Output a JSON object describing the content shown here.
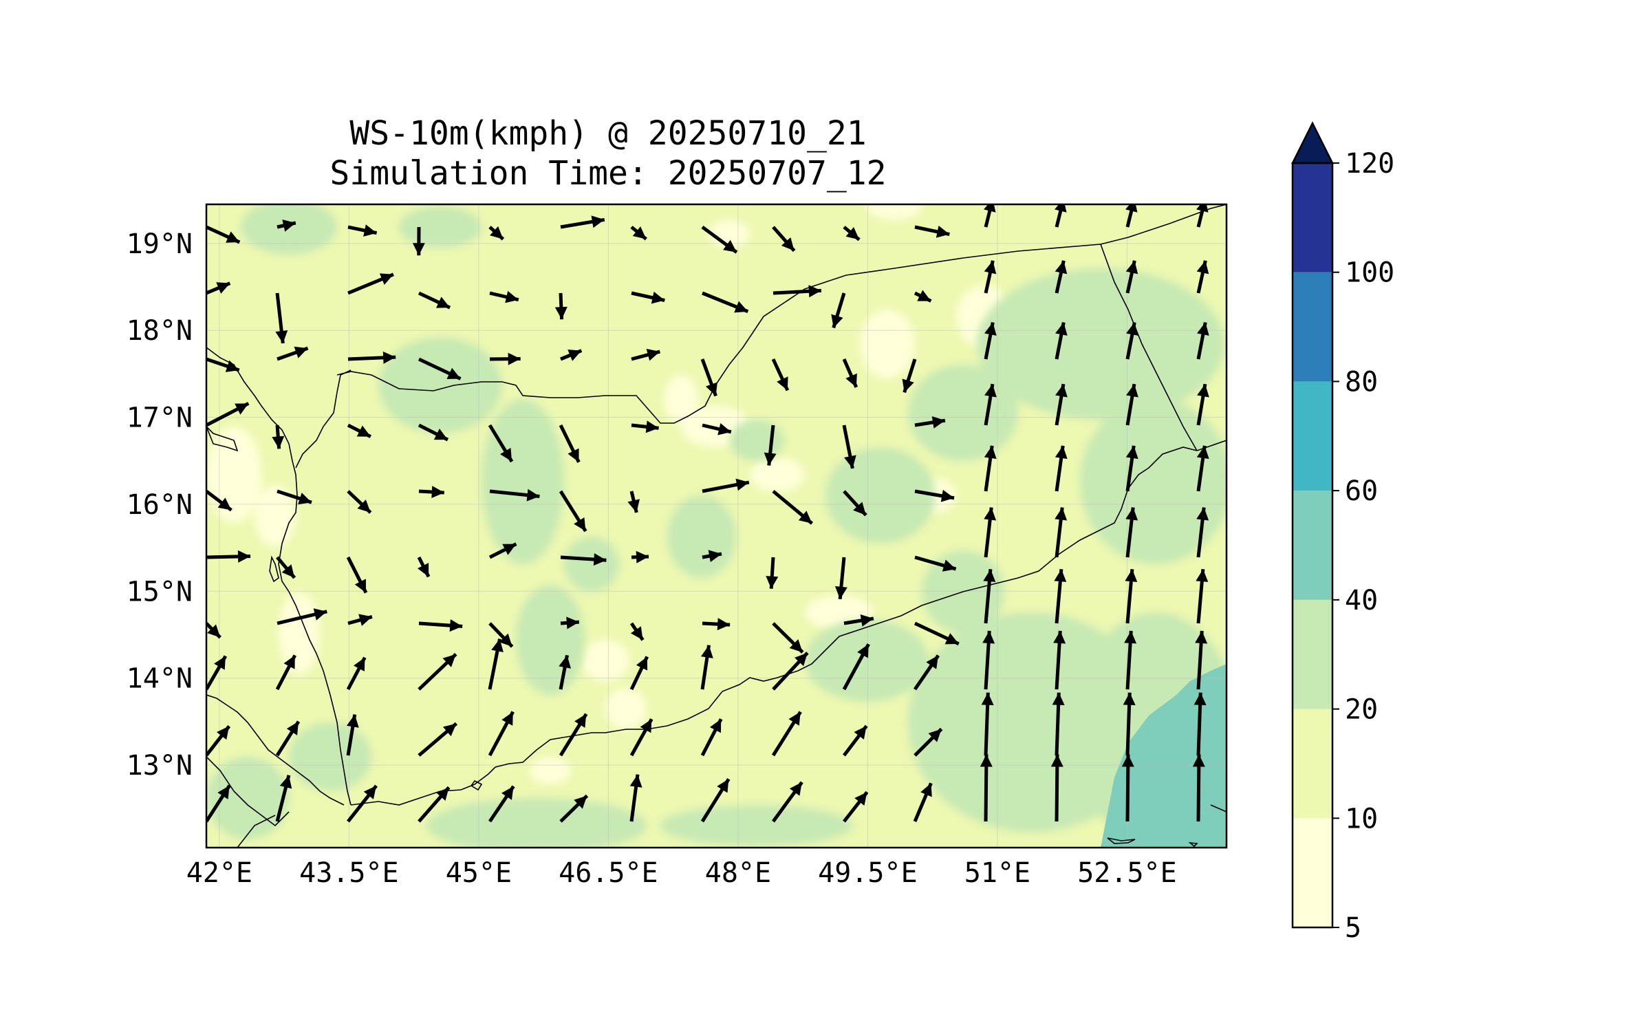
{
  "title": "WS-10m(kmph) @ 20250710_21",
  "subtitle": "Simulation Time: 20250707_12",
  "map": {
    "lon_ticks": [
      "42°E",
      "43.5°E",
      "45°E",
      "46.5°E",
      "48°E",
      "49.5°E",
      "51°E",
      "52.5°E"
    ],
    "lat_ticks": [
      "19°N",
      "18°N",
      "17°N",
      "16°N",
      "15°N",
      "14°N",
      "13°N"
    ],
    "lon_range": [
      41.85,
      53.65
    ],
    "lat_range": [
      12.05,
      19.45
    ]
  },
  "colorbar": {
    "levels": [
      "5",
      "10",
      "20",
      "40",
      "60",
      "80",
      "100",
      "120"
    ],
    "colors": [
      "#ffffd9",
      "#edf8b1",
      "#c7e9b4",
      "#7fcdbb",
      "#41b6c4",
      "#2c7fb8",
      "#253494",
      "#081d58"
    ],
    "extend": "max"
  },
  "field_colors": {
    "background": "#edf8b1",
    "calm": "#ffffd9",
    "moderate": "#c7e9b4",
    "strong": "#7fcdbb"
  }
}
